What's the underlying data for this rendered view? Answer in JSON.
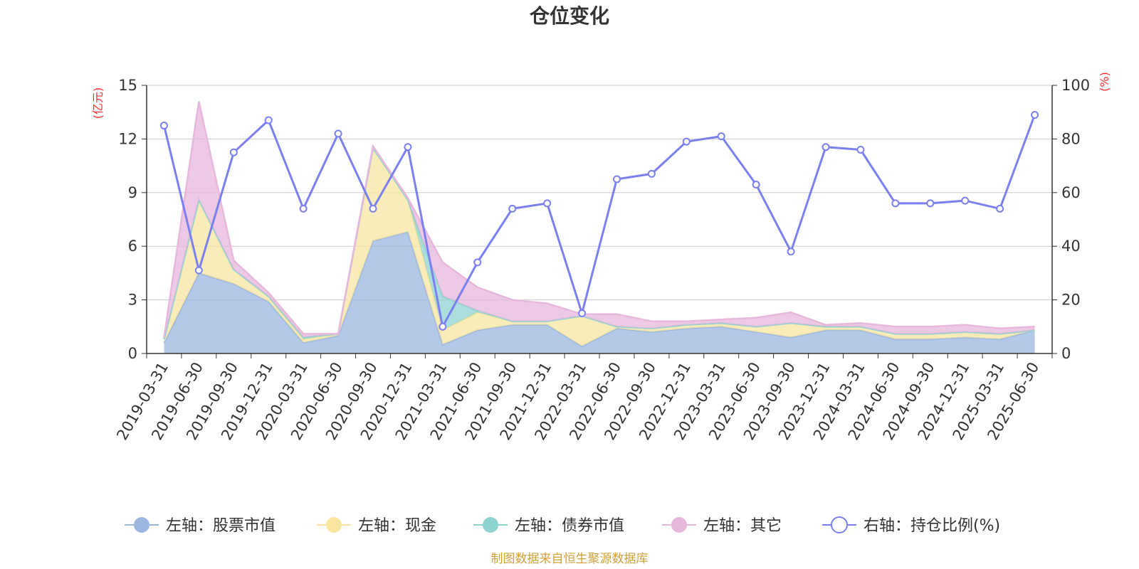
{
  "title": "仓位变化",
  "source": "制图数据来自恒生聚源数据库",
  "chart_data": {
    "type": "area",
    "categories": [
      "2019-03-31",
      "2019-06-30",
      "2019-09-30",
      "2019-12-31",
      "2020-03-31",
      "2020-06-30",
      "2020-09-30",
      "2020-12-31",
      "2021-03-31",
      "2021-06-30",
      "2021-09-30",
      "2021-12-31",
      "2022-03-31",
      "2022-06-30",
      "2022-09-30",
      "2022-12-31",
      "2023-03-31",
      "2023-06-30",
      "2023-09-30",
      "2023-12-31",
      "2024-03-31",
      "2024-06-30",
      "2024-09-30",
      "2024-12-31",
      "2025-03-31",
      "2025-06-30"
    ],
    "left_axis": {
      "unit": "(亿元)",
      "ylim": [
        0,
        15
      ],
      "ticks": [
        "0",
        "3",
        "6",
        "9",
        "12",
        "15"
      ]
    },
    "right_axis": {
      "unit": "(%)",
      "ylim": [
        0,
        100
      ],
      "ticks": [
        "0",
        "20",
        "40",
        "60",
        "80",
        "100"
      ]
    },
    "series": [
      {
        "name": "左轴：股票市值",
        "axis": "left",
        "color": "#9bb7e0",
        "values": [
          0.6,
          4.5,
          3.9,
          2.9,
          0.6,
          1.0,
          6.3,
          6.8,
          0.5,
          1.3,
          1.6,
          1.6,
          0.4,
          1.4,
          1.2,
          1.4,
          1.5,
          1.2,
          0.9,
          1.3,
          1.3,
          0.8,
          0.8,
          0.9,
          0.8,
          1.3
        ]
      },
      {
        "name": "左轴：现金",
        "axis": "left",
        "color": "#f8e6a0",
        "values": [
          0.2,
          4.1,
          0.8,
          0.3,
          0.2,
          0.1,
          5.2,
          1.8,
          0.8,
          1.0,
          0.2,
          0.2,
          1.7,
          0.1,
          0.2,
          0.2,
          0.2,
          0.3,
          0.8,
          0.2,
          0.2,
          0.3,
          0.3,
          0.3,
          0.3,
          0.0
        ]
      },
      {
        "name": "左轴：债券市值",
        "axis": "left",
        "color": "#8fd3d0",
        "values": [
          0,
          0,
          0,
          0,
          0.1,
          0,
          0,
          0,
          1.9,
          0.1,
          0,
          0,
          0,
          0,
          0,
          0,
          0,
          0,
          0,
          0,
          0,
          0,
          0,
          0,
          0,
          0
        ]
      },
      {
        "name": "左轴：其它",
        "axis": "left",
        "color": "#e8b7dc",
        "values": [
          0.1,
          5.5,
          0.5,
          0.2,
          0.2,
          0,
          0.1,
          0.1,
          1.9,
          1.3,
          1.2,
          1.0,
          0.1,
          0.7,
          0.4,
          0.2,
          0.2,
          0.5,
          0.6,
          0.1,
          0.2,
          0.4,
          0.4,
          0.4,
          0.3,
          0.2
        ]
      },
      {
        "name": "右轴：持仓比例(%)",
        "axis": "right",
        "color": "#7b80f0",
        "values": [
          85,
          31,
          75,
          87,
          54,
          82,
          54,
          77,
          10,
          34,
          54,
          56,
          15,
          65,
          67,
          79,
          81,
          63,
          38,
          77,
          76,
          56,
          56,
          57,
          54,
          89
        ]
      }
    ]
  }
}
